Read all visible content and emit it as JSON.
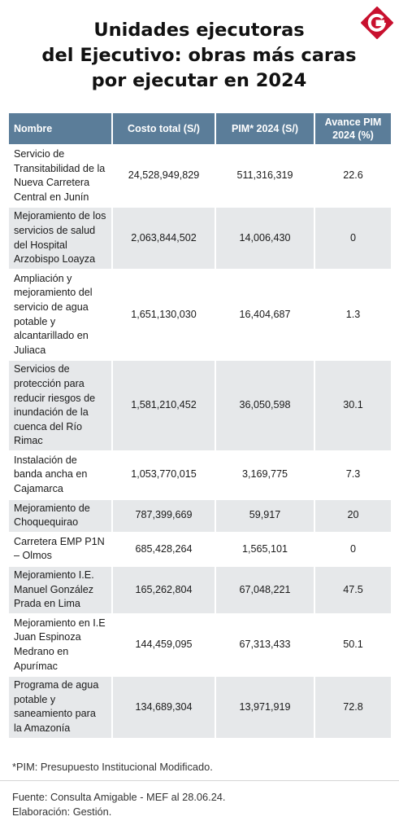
{
  "title": {
    "line1": "Unidades ejecutoras",
    "line2": "del Ejecutivo: obras más caras",
    "line3": "por ejecutar en 2024"
  },
  "logo": {
    "icon": "gestion-g-logo",
    "color": "#c8102e"
  },
  "table": {
    "headers": [
      "Nombre",
      "Costo total (S/)",
      "PIM* 2024 (S/)",
      "Avance PIM 2024 (%)"
    ],
    "rows": [
      {
        "name": "Servicio de Transitabilidad de la Nueva Carretera Central en Junín",
        "cost": "24,528,949,829",
        "pim": "511,316,319",
        "avance": "22.6"
      },
      {
        "name": "Mejoramiento de los servicios de salud del Hospital Arzobispo Loayza",
        "cost": "2,063,844,502",
        "pim": "14,006,430",
        "avance": "0"
      },
      {
        "name": "Ampliación y mejoramiento del servicio de agua potable y alcantarillado en Juliaca",
        "cost": "1,651,130,030",
        "pim": "16,404,687",
        "avance": "1.3"
      },
      {
        "name": "Servicios de protección para reducir riesgos de inundación de la cuenca del Río Rimac",
        "cost": "1,581,210,452",
        "pim": "36,050,598",
        "avance": "30.1"
      },
      {
        "name": "Instalación de banda ancha en Cajamarca",
        "cost": "1,053,770,015",
        "pim": "3,169,775",
        "avance": "7.3"
      },
      {
        "name": "Mejoramiento de Choquequirao",
        "cost": "787,399,669",
        "pim": "59,917",
        "avance": "20"
      },
      {
        "name": "Carretera EMP P1N – Olmos",
        "cost": "685,428,264",
        "pim": "1,565,101",
        "avance": "0"
      },
      {
        "name": "Mejoramiento I.E. Manuel González Prada en Lima",
        "cost": "165,262,804",
        "pim": "67,048,221",
        "avance": "47.5"
      },
      {
        "name": "Mejoramiento en I.E Juan Espinoza Medrano en Apurímac",
        "cost": "144,459,095",
        "pim": "67,313,433",
        "avance": "50.1"
      },
      {
        "name": "Programa de agua potable y saneamiento para la Amazonía",
        "cost": "134,689,304",
        "pim": "13,971,919",
        "avance": "72.8"
      }
    ]
  },
  "footnote": "*PIM: Presupuesto Institucional Modificado.",
  "source": {
    "line1": "Fuente: Consulta Amigable - MEF al 28.06.24.",
    "line2": "Elaboración: Gestión."
  },
  "colors": {
    "header_bg": "#5b7d99",
    "row_alt": "#e6e8ea"
  }
}
